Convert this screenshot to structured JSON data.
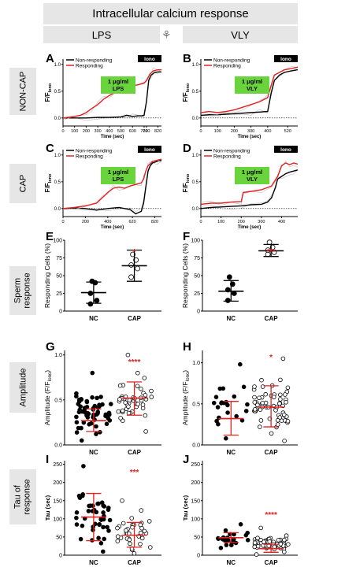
{
  "header": {
    "title": "Intracellular calcium response",
    "left_label": "LPS",
    "right_label": "VLY",
    "center_icon": "ovary-icon"
  },
  "side_labels": {
    "noncap": "NON-CAP",
    "cap": "CAP",
    "sperm": [
      "Sperm",
      "response"
    ],
    "amplitude": "Amplitude",
    "tau": [
      "Tau of",
      "response"
    ]
  },
  "chart_data": [
    {
      "panel": "A",
      "type": "line",
      "xlabel": "Time (sec)",
      "ylabel": "F/F",
      "ylabel_sub": "Iono",
      "xticks": [
        0,
        100,
        200,
        300,
        400,
        500,
        600,
        700,
        720,
        820
      ],
      "yticks": [
        0.0,
        0.5,
        1.0
      ],
      "xlim": [
        0,
        850
      ],
      "ylim": [
        -0.15,
        1.1
      ],
      "legend": [
        "Non-responding",
        "Responding"
      ],
      "iono_label": "Iono",
      "box_text": [
        "1 μg/ml",
        "LPS"
      ],
      "colors": [
        "#000000",
        "#e32020"
      ],
      "series": [
        {
          "name": "Non-responding",
          "x": [
            0,
            100,
            200,
            300,
            400,
            500,
            550,
            600,
            650,
            680,
            700,
            720,
            740,
            760,
            790,
            820,
            850
          ],
          "y": [
            0,
            0,
            0,
            0.01,
            0.01,
            0.02,
            0.05,
            0.03,
            0.04,
            0.04,
            0.05,
            0.3,
            0.7,
            0.8,
            0.85,
            0.86,
            0.86
          ]
        },
        {
          "name": "Responding",
          "x": [
            0,
            100,
            150,
            200,
            250,
            300,
            350,
            400,
            450,
            500,
            550,
            600,
            650,
            700,
            720,
            750,
            780,
            820,
            850
          ],
          "y": [
            0,
            0.03,
            0.05,
            0.1,
            0.18,
            0.25,
            0.35,
            0.42,
            0.48,
            0.52,
            0.55,
            0.6,
            0.62,
            0.65,
            0.7,
            0.82,
            0.88,
            0.9,
            0.9
          ]
        }
      ]
    },
    {
      "panel": "B",
      "type": "line",
      "xlabel": "Time (sec)",
      "ylabel": "F/F",
      "ylabel_sub": "Iono",
      "xticks": [
        0,
        100,
        200,
        300,
        400,
        520
      ],
      "yticks": [
        0.0,
        0.5,
        1.0
      ],
      "xlim": [
        0,
        580
      ],
      "ylim": [
        -0.15,
        1.1
      ],
      "legend": [
        "Non-responding",
        "Responding"
      ],
      "iono_label": "Iono",
      "box_text": [
        "1 μg/ml",
        "VLY"
      ],
      "colors": [
        "#000000",
        "#e32020"
      ],
      "series": [
        {
          "name": "Non-responding",
          "x": [
            0,
            50,
            100,
            150,
            200,
            250,
            300,
            350,
            400,
            420,
            440,
            470,
            500,
            540,
            580
          ],
          "y": [
            0.05,
            0.06,
            0.06,
            0.07,
            0.08,
            0.09,
            0.1,
            0.11,
            0.12,
            0.45,
            0.7,
            0.8,
            0.85,
            0.88,
            0.9
          ]
        },
        {
          "name": "Responding",
          "x": [
            0,
            50,
            100,
            150,
            200,
            250,
            300,
            350,
            380,
            400,
            420,
            440,
            470,
            500,
            540,
            580
          ],
          "y": [
            0.1,
            0.12,
            0.1,
            0.12,
            0.15,
            0.2,
            0.25,
            0.3,
            0.35,
            0.38,
            0.6,
            0.8,
            0.85,
            0.9,
            0.92,
            0.95
          ]
        }
      ]
    },
    {
      "panel": "C",
      "type": "line",
      "xlabel": "Time (sec)",
      "ylabel": "F/F",
      "ylabel_sub": "Iono",
      "xticks": [
        0,
        200,
        400,
        620,
        820
      ],
      "yticks": [
        0.0,
        0.5,
        1.0
      ],
      "xlim": [
        0,
        880
      ],
      "ylim": [
        -0.15,
        1.1
      ],
      "legend": [
        "Non-responding",
        "Responding"
      ],
      "iono_label": "Iono",
      "box_text": [
        "1 μg/ml",
        "LPS"
      ],
      "colors": [
        "#000000",
        "#e32020"
      ],
      "series": [
        {
          "name": "Non-responding",
          "x": [
            0,
            100,
            200,
            300,
            400,
            500,
            600,
            650,
            700,
            720,
            740,
            760,
            780,
            800,
            840,
            880
          ],
          "y": [
            0,
            0.01,
            0,
            -0.03,
            0,
            0.02,
            -0.02,
            -0.1,
            -0.05,
            0.1,
            0.4,
            0.7,
            0.8,
            0.85,
            0.88,
            0.9
          ]
        },
        {
          "name": "Responding",
          "x": [
            0,
            100,
            200,
            300,
            350,
            400,
            450,
            500,
            550,
            600,
            650,
            700,
            720,
            740,
            760,
            800,
            840,
            880
          ],
          "y": [
            0,
            0.02,
            0.05,
            0.1,
            0.2,
            0.3,
            0.38,
            0.4,
            0.38,
            0.42,
            0.45,
            0.48,
            0.55,
            0.7,
            0.8,
            0.88,
            0.9,
            0.92
          ]
        }
      ]
    },
    {
      "panel": "D",
      "type": "line",
      "xlabel": "Time (sec)",
      "ylabel": "F/F",
      "ylabel_sub": "Iono",
      "xticks": [
        0,
        100,
        200,
        300,
        400
      ],
      "yticks": [
        0.0,
        0.5,
        1.0
      ],
      "xlim": [
        0,
        480
      ],
      "ylim": [
        -0.15,
        1.1
      ],
      "legend": [
        "Non-responding",
        "Responding"
      ],
      "iono_label": "Iono",
      "box_text": [
        "1 μg/ml",
        "VLY"
      ],
      "colors": [
        "#000000",
        "#e32020"
      ],
      "series": [
        {
          "name": "Non-responding",
          "x": [
            0,
            50,
            100,
            150,
            200,
            250,
            300,
            330,
            350,
            370,
            380,
            400,
            420,
            440,
            460,
            480
          ],
          "y": [
            0,
            0.02,
            0.03,
            0.04,
            0.05,
            0.07,
            0.08,
            0.12,
            0.2,
            0.4,
            0.55,
            0.6,
            0.65,
            0.68,
            0.7,
            0.72
          ]
        },
        {
          "name": "Responding",
          "x": [
            0,
            50,
            100,
            150,
            200,
            210,
            250,
            300,
            350,
            380,
            400,
            420,
            440,
            460,
            480
          ],
          "y": [
            0.08,
            0.1,
            0.1,
            0.12,
            0.13,
            0.3,
            0.32,
            0.35,
            0.42,
            0.6,
            0.8,
            0.85,
            0.82,
            0.85,
            0.83
          ]
        }
      ]
    },
    {
      "panel": "E",
      "type": "scatter",
      "ylabel": "Responding Cells (%)",
      "categories": [
        "NC",
        "CAP"
      ],
      "yticks": [
        0,
        25,
        50,
        75,
        100
      ],
      "ylim": [
        0,
        100
      ],
      "significance": "*",
      "groups": [
        {
          "name": "NC",
          "values": [
            10,
            15,
            25,
            40,
            42
          ],
          "mean": 26,
          "sd_low": 11,
          "sd_high": 41,
          "filled": true
        },
        {
          "name": "CAP",
          "values": [
            48,
            60,
            65,
            72,
            80
          ],
          "mean": 64,
          "sd_low": 42,
          "sd_high": 86,
          "filled": false
        }
      ]
    },
    {
      "panel": "F",
      "type": "scatter",
      "ylabel": "Responding Cells (%)",
      "categories": [
        "NC",
        "CAP"
      ],
      "yticks": [
        0,
        25,
        50,
        75,
        100
      ],
      "ylim": [
        0,
        100
      ],
      "significance": "***",
      "groups": [
        {
          "name": "NC",
          "values": [
            15,
            25,
            30,
            38,
            48
          ],
          "mean": 28,
          "sd_low": 14,
          "sd_high": 43,
          "filled": true
        },
        {
          "name": "CAP",
          "values": [
            80,
            83,
            86,
            90,
            97
          ],
          "mean": 85,
          "sd_low": 77,
          "sd_high": 94,
          "filled": false
        }
      ]
    },
    {
      "panel": "G",
      "type": "scatter",
      "ylabel": "Amplitude (F/F",
      "ylabel_sub": "Iono",
      "categories": [
        "NC",
        "CAP"
      ],
      "yticks": [
        0.0,
        0.5,
        1.0
      ],
      "ylim": [
        0,
        1.05
      ],
      "significance": "****",
      "groups": [
        {
          "name": "NC",
          "count": 60,
          "mean": 0.27,
          "sd_low": 0.15,
          "sd_high": 0.4,
          "min": 0.05,
          "max": 0.8,
          "filled": true
        },
        {
          "name": "CAP",
          "count": 45,
          "mean": 0.52,
          "sd_low": 0.33,
          "sd_high": 0.7,
          "min": 0.15,
          "max": 1.0,
          "filled": false
        }
      ]
    },
    {
      "panel": "H",
      "type": "scatter",
      "ylabel": "Amplitude (F/F",
      "ylabel_sub": "Iono",
      "categories": [
        "NC",
        "CAP"
      ],
      "yticks": [
        0.0,
        0.5,
        1.0
      ],
      "ylim": [
        0,
        1.15
      ],
      "significance": "*",
      "groups": [
        {
          "name": "NC",
          "count": 22,
          "mean": 0.32,
          "sd_low": 0.12,
          "sd_high": 0.53,
          "min": 0.08,
          "max": 0.98,
          "filled": true
        },
        {
          "name": "CAP",
          "count": 60,
          "mean": 0.46,
          "sd_low": 0.22,
          "sd_high": 0.72,
          "min": 0.05,
          "max": 1.05,
          "filled": false
        }
      ]
    },
    {
      "panel": "I",
      "type": "scatter",
      "ylabel": "Tau (sec)",
      "categories": [
        "NC",
        "CAP"
      ],
      "yticks": [
        0,
        50,
        100,
        150,
        200,
        250
      ],
      "ylim": [
        0,
        260
      ],
      "significance": "***",
      "groups": [
        {
          "name": "NC",
          "count": 45,
          "mean": 105,
          "sd_low": 40,
          "sd_high": 170,
          "min": 10,
          "max": 245,
          "filled": true
        },
        {
          "name": "CAP",
          "count": 35,
          "mean": 55,
          "sd_low": 22,
          "sd_high": 90,
          "min": 5,
          "max": 150,
          "filled": false
        }
      ]
    },
    {
      "panel": "J",
      "type": "scatter",
      "ylabel": "Tau (sec)",
      "categories": [
        "NC",
        "CAP"
      ],
      "yticks": [
        0,
        50,
        100,
        150,
        200,
        250
      ],
      "ylim": [
        0,
        260
      ],
      "significance": "****",
      "groups": [
        {
          "name": "NC",
          "count": 22,
          "mean": 48,
          "sd_low": 35,
          "sd_high": 62,
          "min": 20,
          "max": 85,
          "filled": true
        },
        {
          "name": "CAP",
          "count": 60,
          "mean": 18,
          "sd_low": 8,
          "sd_high": 30,
          "min": 2,
          "max": 75,
          "filled": false
        }
      ]
    }
  ]
}
